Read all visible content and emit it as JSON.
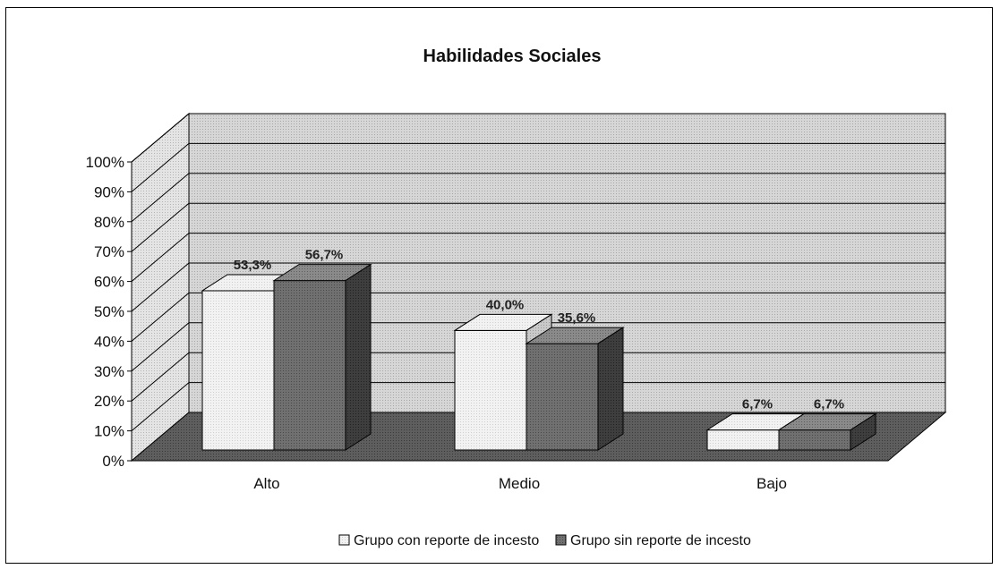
{
  "chart_data": {
    "type": "bar",
    "title": "Habilidades Sociales",
    "categories": [
      "Alto",
      "Medio",
      "Bajo"
    ],
    "series": [
      {
        "name": "Grupo con reporte de incesto",
        "values": [
          53.3,
          40.0,
          6.7
        ],
        "labels": [
          "53,3%",
          "40,0%",
          "6,7%"
        ],
        "color": "#f2f2f2"
      },
      {
        "name": "Grupo sin reporte de incesto",
        "values": [
          56.7,
          35.6,
          6.7
        ],
        "labels": [
          "56,7%",
          "35,6%",
          "6,7%"
        ],
        "color": "#6e6e6e"
      }
    ],
    "yticks": [
      "0%",
      "10%",
      "20%",
      "30%",
      "40%",
      "50%",
      "60%",
      "70%",
      "80%",
      "90%",
      "100%"
    ],
    "ylim": [
      0,
      100
    ],
    "grid": true,
    "legend_position": "bottom",
    "style": "3d-clustered-column",
    "colors": {
      "wall": "#d4d4d4",
      "floor": "#555555"
    }
  }
}
